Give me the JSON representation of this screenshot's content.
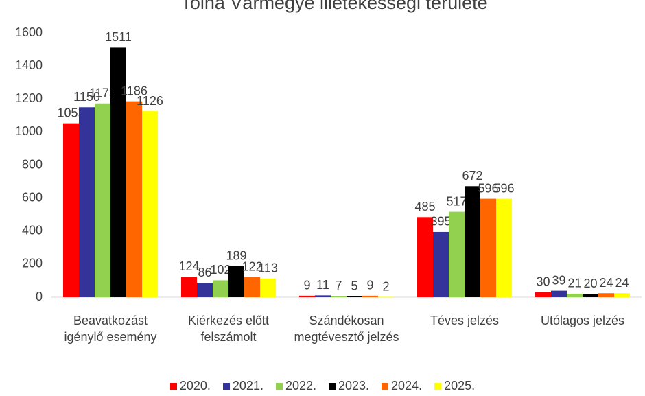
{
  "chart_data": {
    "type": "bar",
    "title": "Tolna Vármegye illetékességi területe",
    "categories": [
      "Beavatkozást igénylő esemény",
      "Kiérkezés előtt felszámolt",
      "Szándékosan megtévesztő jelzés",
      "Téves jelzés",
      "Utólagos jelzés"
    ],
    "series": [
      {
        "name": "2020.",
        "color": "#ff0000",
        "values": [
          1053,
          124,
          9,
          485,
          30
        ]
      },
      {
        "name": "2021.",
        "color": "#333399",
        "values": [
          1150,
          86,
          11,
          395,
          39
        ]
      },
      {
        "name": "2022.",
        "color": "#92d050",
        "values": [
          1173,
          102,
          7,
          517,
          21
        ]
      },
      {
        "name": "2023.",
        "color": "#000000",
        "values": [
          1511,
          189,
          5,
          672,
          20
        ]
      },
      {
        "name": "2024.",
        "color": "#ff6600",
        "values": [
          1186,
          122,
          9,
          596,
          24
        ]
      },
      {
        "name": "2025.",
        "color": "#ffff00",
        "values": [
          1126,
          113,
          2,
          596,
          24
        ]
      }
    ],
    "ylim": [
      0,
      1600
    ],
    "yticks": [
      0,
      200,
      400,
      600,
      800,
      1000,
      1200,
      1400,
      1600
    ]
  }
}
